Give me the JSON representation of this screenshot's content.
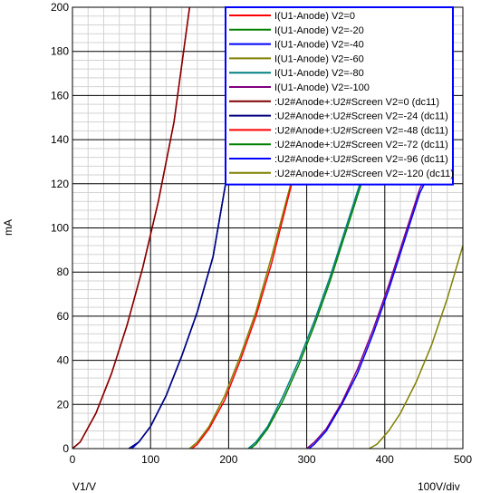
{
  "chart_data": {
    "type": "line",
    "xlabel": "V1/V",
    "x_div_label": "100V/div",
    "ylabel": "mA",
    "xlim": [
      0,
      500
    ],
    "ylim": [
      0,
      200
    ],
    "x_ticks": [
      0,
      100,
      200,
      300,
      400,
      500
    ],
    "y_ticks": [
      0,
      20,
      40,
      60,
      80,
      100,
      120,
      140,
      160,
      180,
      200
    ],
    "grid": true,
    "minor_grid": true,
    "legend_position": "top-right",
    "series": [
      {
        "name": "I(U1-Anode) V2=0",
        "color": "#ff0000",
        "x": [
          0,
          10,
          30,
          50,
          70,
          90,
          110,
          130,
          150
        ],
        "y": [
          0,
          3,
          16,
          34,
          56,
          82,
          112,
          148,
          200
        ]
      },
      {
        "name": "I(U1-Anode) V2=-20",
        "color": "#008000",
        "x": [
          74,
          85,
          100,
          120,
          140,
          160,
          180,
          200
        ],
        "y": [
          0,
          3,
          10,
          24,
          42,
          62,
          87,
          128
        ]
      },
      {
        "name": "I(U1-Anode) V2=-40",
        "color": "#0000ff",
        "x": [
          76,
          85,
          100,
          120,
          140,
          160,
          180,
          200
        ],
        "y": [
          0,
          3,
          10,
          24,
          42,
          62,
          87,
          128
        ]
      },
      {
        "name": "I(U1-Anode) V2=-60",
        "color": "#808000",
        "x": [
          150,
          160,
          175,
          195,
          215,
          235,
          255,
          275,
          295
        ],
        "y": [
          0,
          3,
          10,
          24,
          42,
          62,
          87,
          114,
          140
        ]
      },
      {
        "name": "I(U1-Anode) V2=-80",
        "color": "#008080",
        "x": [
          225,
          235,
          250,
          270,
          290,
          310,
          330,
          350,
          370,
          390
        ],
        "y": [
          0,
          3,
          10,
          24,
          40,
          58,
          78,
          100,
          122,
          130
        ]
      },
      {
        "name": "I(U1-Anode) V2=-100",
        "color": "#800080",
        "x": [
          300,
          310,
          325,
          345,
          365,
          385,
          405,
          425,
          445,
          465
        ],
        "y": [
          0,
          3,
          9,
          21,
          36,
          54,
          74,
          96,
          118,
          130
        ]
      },
      {
        "name": ":U2#Anode+:U2#Screen V2=0 (dc11)",
        "color": "#800000",
        "x": [
          0,
          10,
          30,
          50,
          70,
          90,
          110,
          130,
          150
        ],
        "y": [
          0,
          3,
          16,
          34,
          56,
          82,
          112,
          148,
          200
        ]
      },
      {
        "name": ":U2#Anode+:U2#Screen V2=-24 (dc11)",
        "color": "#000080",
        "x": [
          72,
          85,
          100,
          120,
          140,
          160,
          180,
          200
        ],
        "y": [
          0,
          3,
          10,
          24,
          42,
          62,
          87,
          128
        ]
      },
      {
        "name": ":U2#Anode+:U2#Screen V2=-48 (dc11)",
        "color": "#ff0000",
        "x": [
          153,
          160,
          175,
          195,
          215,
          235,
          255,
          275,
          295
        ],
        "y": [
          0,
          2,
          9,
          22,
          40,
          60,
          84,
          112,
          140
        ]
      },
      {
        "name": ":U2#Anode+:U2#Screen V2=-72 (dc11)",
        "color": "#008000",
        "x": [
          228,
          235,
          250,
          270,
          290,
          310,
          330,
          350,
          370,
          390
        ],
        "y": [
          0,
          2,
          9,
          22,
          38,
          56,
          76,
          98,
          120,
          130
        ]
      },
      {
        "name": ":U2#Anode+:U2#Screen V2=-96 (dc11)",
        "color": "#0000ff",
        "x": [
          303,
          310,
          325,
          345,
          365,
          385,
          405,
          425,
          445,
          465
        ],
        "y": [
          0,
          2,
          8,
          20,
          34,
          52,
          72,
          94,
          116,
          130
        ]
      },
      {
        "name": ":U2#Anode+:U2#Screen V2=-120 (dc11)",
        "color": "#808000",
        "x": [
          380,
          390,
          405,
          420,
          440,
          460,
          480,
          500
        ],
        "y": [
          0,
          2,
          8,
          16,
          30,
          47,
          68,
          92
        ]
      }
    ]
  }
}
